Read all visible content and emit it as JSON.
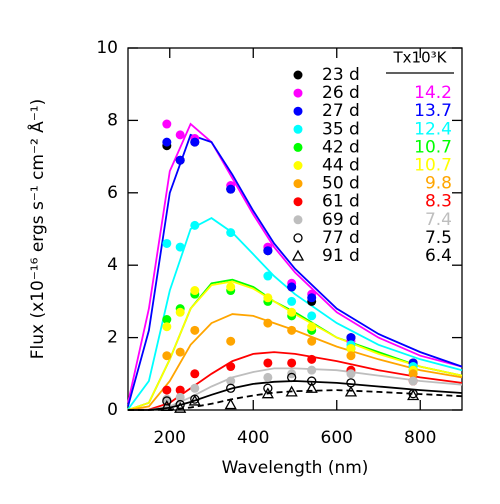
{
  "chart_data": {
    "type": "scatter",
    "xlabel": "Wavelength (nm)",
    "ylabel": "Flux (x10⁻¹⁶ ergs s⁻¹ cm⁻² Å⁻¹)",
    "legend_header": "Tx10³K",
    "xlim": [
      100,
      900
    ],
    "xticks": [
      200,
      400,
      600,
      800
    ],
    "ylim": [
      0,
      10
    ],
    "yticks": [
      0,
      2,
      4,
      6,
      8,
      10
    ],
    "x": [
      193,
      225,
      260,
      346,
      435,
      492,
      540,
      634,
      783
    ],
    "fit_x": [
      100,
      150,
      200,
      250,
      300,
      350,
      400,
      450,
      500,
      600,
      700,
      800,
      900
    ],
    "series": [
      {
        "name": "23 d",
        "color": "#000000",
        "marker": "filled",
        "values": [
          7.3,
          6.9,
          7.4,
          6.1,
          4.4,
          3.4,
          3.0,
          2.0,
          1.3
        ]
      },
      {
        "name": "26 d",
        "color": "#ff00ff",
        "marker": "filled",
        "temperature": "14.2",
        "values": [
          7.9,
          7.6,
          7.5,
          6.2,
          4.5,
          3.5,
          3.2,
          1.9,
          1.2
        ],
        "fit": [
          0.2,
          2.8,
          6.6,
          7.9,
          7.4,
          6.4,
          5.4,
          4.5,
          3.8,
          2.7,
          2.0,
          1.5,
          1.2
        ]
      },
      {
        "name": "27 d",
        "color": "#0000ff",
        "marker": "filled",
        "temperature": "13.7",
        "values": [
          7.4,
          6.9,
          7.4,
          6.1,
          4.4,
          3.4,
          3.1,
          2.0,
          1.3
        ],
        "fit": [
          0.1,
          2.2,
          6.0,
          7.6,
          7.4,
          6.5,
          5.5,
          4.6,
          3.9,
          2.8,
          2.1,
          1.6,
          1.2
        ]
      },
      {
        "name": "35 d",
        "color": "#00ffff",
        "marker": "filled",
        "temperature": "12.4",
        "values": [
          4.6,
          4.5,
          5.1,
          4.9,
          3.7,
          3.0,
          2.6,
          1.8,
          1.2
        ],
        "fit": [
          0.02,
          0.8,
          3.3,
          5.0,
          5.3,
          4.9,
          4.3,
          3.7,
          3.2,
          2.4,
          1.8,
          1.4,
          1.1
        ]
      },
      {
        "name": "42 d",
        "color": "#00ff00",
        "marker": "filled",
        "temperature": "10.7",
        "values": [
          2.5,
          2.8,
          3.2,
          3.3,
          3.0,
          2.6,
          2.2,
          1.7,
          1.1
        ],
        "fit": [
          0,
          0.2,
          1.4,
          2.8,
          3.5,
          3.6,
          3.4,
          3.0,
          2.7,
          2.0,
          1.6,
          1.2,
          0.95
        ]
      },
      {
        "name": "44 d",
        "color": "#ffff00",
        "marker": "filled",
        "temperature": "10.7",
        "values": [
          2.3,
          2.7,
          3.3,
          3.4,
          3.1,
          2.7,
          2.3,
          1.7,
          1.1
        ],
        "fit": [
          0,
          0.2,
          1.4,
          2.8,
          3.45,
          3.55,
          3.35,
          3.0,
          2.65,
          2.0,
          1.55,
          1.2,
          0.95
        ]
      },
      {
        "name": "50 d",
        "color": "#ffa500",
        "marker": "filled",
        "temperature": "9.8",
        "values": [
          1.5,
          1.6,
          2.2,
          1.9,
          2.4,
          2.2,
          1.9,
          1.5,
          1.0
        ],
        "fit": [
          0,
          0.1,
          0.8,
          1.8,
          2.4,
          2.65,
          2.6,
          2.4,
          2.2,
          1.75,
          1.4,
          1.1,
          0.9
        ]
      },
      {
        "name": "61 d",
        "color": "#ff0000",
        "marker": "filled",
        "temperature": "8.3",
        "values": [
          0.55,
          0.55,
          1.0,
          1.2,
          1.3,
          1.3,
          1.4,
          1.1,
          0.8
        ],
        "fit": [
          0,
          0.01,
          0.2,
          0.6,
          1.0,
          1.35,
          1.55,
          1.6,
          1.55,
          1.35,
          1.1,
          0.9,
          0.75
        ]
      },
      {
        "name": "69 d",
        "color": "#bebebe",
        "marker": "filled",
        "temperature": "7.4",
        "values": [
          0.3,
          0.35,
          0.6,
          0.8,
          0.9,
          1.0,
          1.1,
          1.0,
          0.8
        ],
        "fit": [
          0,
          0,
          0.1,
          0.35,
          0.65,
          0.9,
          1.05,
          1.15,
          1.15,
          1.1,
          0.95,
          0.8,
          0.7
        ]
      },
      {
        "name": "77 d",
        "color": "#000000",
        "marker": "open-circle",
        "temperature": "7.5",
        "values": [
          0.25,
          0.15,
          0.3,
          0.6,
          0.6,
          0.9,
          0.8,
          0.75,
          0.45
        ],
        "fit": [
          0,
          0,
          0.06,
          0.22,
          0.42,
          0.6,
          0.72,
          0.78,
          0.8,
          0.75,
          0.65,
          0.55,
          0.47
        ]
      },
      {
        "name": "91 d",
        "color": "#000000",
        "marker": "open-triangle",
        "temperature": "6.4",
        "fit_style": "dashed",
        "values": [
          0.1,
          0.05,
          0.25,
          0.15,
          0.45,
          0.5,
          0.6,
          0.5,
          0.4
        ],
        "fit": [
          0,
          0,
          0.01,
          0.07,
          0.17,
          0.3,
          0.4,
          0.48,
          0.52,
          0.55,
          0.5,
          0.44,
          0.38
        ]
      }
    ]
  }
}
